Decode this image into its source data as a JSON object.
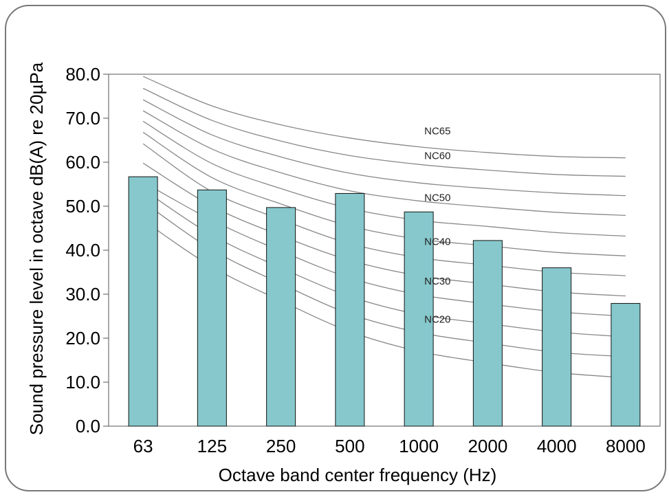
{
  "chart_data": {
    "type": "bar",
    "title": "",
    "xlabel": "Octave band center frequency (Hz)",
    "ylabel": "Sound pressure level in octave dB(A) re 20µPa",
    "categories": [
      "63",
      "125",
      "250",
      "500",
      "1000",
      "2000",
      "4000",
      "8000"
    ],
    "values": [
      56.7,
      53.7,
      49.7,
      52.9,
      48.7,
      42.2,
      36.0,
      27.9
    ],
    "ylim": [
      0,
      80
    ],
    "yticks": [
      "0.0",
      "10.0",
      "20.0",
      "30.0",
      "40.0",
      "50.0",
      "60.0",
      "70.0",
      "80.0"
    ],
    "grid": false,
    "bar_color": "#86c8cc",
    "curve_color": "#888888",
    "nc_curves": [
      {
        "values": [
          79.5,
          72.8,
          68.5,
          65.5,
          63.5,
          62.2,
          61.3,
          61.0
        ]
      },
      {
        "values": [
          76.8,
          69.5,
          64.8,
          61.5,
          59.5,
          58.2,
          57.2,
          56.8
        ]
      },
      {
        "values": [
          74.2,
          66.2,
          61.2,
          57.5,
          55.3,
          54.0,
          53.0,
          52.4
        ]
      },
      {
        "values": [
          71.7,
          63.0,
          57.6,
          53.5,
          51.2,
          49.8,
          48.6,
          47.9
        ]
      },
      {
        "values": [
          69.3,
          59.7,
          54.0,
          49.5,
          46.8,
          45.4,
          44.0,
          43.2
        ]
      },
      {
        "values": [
          66.8,
          56.5,
          50.5,
          45.5,
          42.5,
          41.0,
          39.5,
          38.7
        ]
      },
      {
        "values": [
          64.2,
          53.3,
          47.0,
          41.5,
          38.3,
          36.6,
          35.0,
          34.2
        ]
      },
      {
        "values": [
          59.8,
          50.0,
          43.3,
          37.7,
          34.2,
          32.3,
          30.5,
          29.6
        ]
      },
      {
        "values": [
          55.5,
          46.8,
          39.8,
          33.7,
          29.9,
          27.8,
          26.0,
          25.0
        ]
      },
      {
        "values": [
          53.8,
          43.4,
          36.0,
          29.5,
          25.4,
          23.3,
          21.4,
          20.3
        ]
      },
      {
        "values": [
          51.0,
          40.1,
          32.4,
          25.5,
          21.3,
          18.9,
          16.8,
          15.8
        ]
      },
      {
        "values": [
          46.8,
          36.2,
          28.5,
          21.5,
          17.0,
          14.4,
          12.2,
          11.0
        ]
      }
    ],
    "nc_labels": [
      {
        "text": "NC65",
        "x": "1000",
        "y": 66.3
      },
      {
        "text": "NC60",
        "x": "1000",
        "y": 60.7
      },
      {
        "text": "NC50",
        "x": "1000",
        "y": 51.2
      },
      {
        "text": "NC40",
        "x": "1000",
        "y": 41.2
      },
      {
        "text": "NC30",
        "x": "1000",
        "y": 32.2
      },
      {
        "text": "NC20",
        "x": "1000",
        "y": 23.5
      }
    ]
  }
}
